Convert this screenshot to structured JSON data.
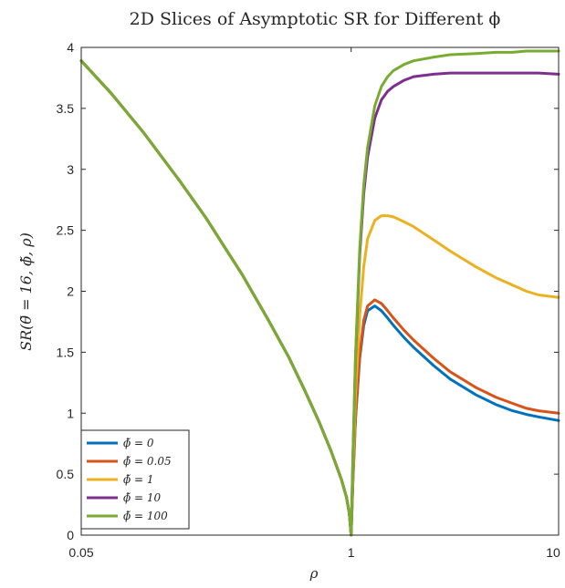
{
  "colors": {
    "axis": "#262626",
    "series": [
      "#0072BD",
      "#D95319",
      "#EDB120",
      "#7E2F8E",
      "#77AC30"
    ]
  },
  "chart_data": {
    "type": "line",
    "title": "2D Slices of Asymptotic SR for Different ϕ",
    "xlabel": "ρ",
    "ylabel": "SR(θ̃ = 16, ϕ̃, ρ)",
    "x_scale": "log",
    "xlim": [
      0.05,
      10
    ],
    "ylim": [
      0,
      4
    ],
    "x_ticks": [
      "0.05",
      "1",
      "10"
    ],
    "y_ticks": [
      "0",
      "0.5",
      "1",
      "1.5",
      "2",
      "2.5",
      "3",
      "3.5",
      "4"
    ],
    "grid": false,
    "legend_position": "bottom-left",
    "x": [
      0.05,
      0.07,
      0.1,
      0.15,
      0.2,
      0.3,
      0.4,
      0.5,
      0.6,
      0.7,
      0.8,
      0.9,
      0.95,
      0.98,
      1.0,
      1.02,
      1.05,
      1.1,
      1.15,
      1.2,
      1.3,
      1.4,
      1.5,
      1.6,
      1.8,
      2.0,
      2.5,
      3.0,
      4.0,
      5.0,
      6.0,
      7.0,
      8.0,
      10.0
    ],
    "series": [
      {
        "name": "ϕ̃ = 0",
        "values": [
          3.89,
          3.62,
          3.3,
          2.9,
          2.6,
          2.13,
          1.76,
          1.46,
          1.18,
          0.93,
          0.69,
          0.45,
          0.31,
          0.18,
          0.0,
          0.45,
          0.95,
          1.45,
          1.72,
          1.84,
          1.88,
          1.84,
          1.78,
          1.72,
          1.62,
          1.54,
          1.39,
          1.28,
          1.15,
          1.07,
          1.02,
          0.99,
          0.97,
          0.94
        ]
      },
      {
        "name": "ϕ̃ = 0.05",
        "values": [
          3.89,
          3.62,
          3.3,
          2.9,
          2.6,
          2.13,
          1.76,
          1.46,
          1.18,
          0.93,
          0.69,
          0.45,
          0.31,
          0.18,
          0.0,
          0.46,
          0.97,
          1.48,
          1.76,
          1.88,
          1.93,
          1.9,
          1.84,
          1.78,
          1.68,
          1.6,
          1.45,
          1.34,
          1.21,
          1.13,
          1.08,
          1.04,
          1.02,
          1.0
        ]
      },
      {
        "name": "ϕ̃ = 1",
        "values": [
          3.89,
          3.62,
          3.3,
          2.9,
          2.6,
          2.13,
          1.76,
          1.46,
          1.18,
          0.93,
          0.69,
          0.45,
          0.31,
          0.18,
          0.0,
          0.52,
          1.15,
          1.8,
          2.2,
          2.43,
          2.58,
          2.62,
          2.62,
          2.61,
          2.57,
          2.53,
          2.42,
          2.33,
          2.2,
          2.11,
          2.05,
          2.0,
          1.97,
          1.95
        ]
      },
      {
        "name": "ϕ̃ = 10",
        "values": [
          3.89,
          3.62,
          3.3,
          2.9,
          2.6,
          2.13,
          1.76,
          1.46,
          1.18,
          0.93,
          0.69,
          0.45,
          0.31,
          0.18,
          0.0,
          0.65,
          1.45,
          2.3,
          2.8,
          3.1,
          3.42,
          3.57,
          3.64,
          3.68,
          3.73,
          3.76,
          3.78,
          3.79,
          3.79,
          3.79,
          3.79,
          3.79,
          3.79,
          3.78
        ]
      },
      {
        "name": "ϕ̃ = 100",
        "values": [
          3.89,
          3.62,
          3.3,
          2.9,
          2.6,
          2.13,
          1.76,
          1.46,
          1.18,
          0.93,
          0.69,
          0.45,
          0.31,
          0.18,
          0.0,
          0.66,
          1.48,
          2.35,
          2.87,
          3.18,
          3.52,
          3.68,
          3.76,
          3.81,
          3.86,
          3.89,
          3.92,
          3.94,
          3.95,
          3.96,
          3.96,
          3.97,
          3.97,
          3.97
        ]
      }
    ]
  }
}
